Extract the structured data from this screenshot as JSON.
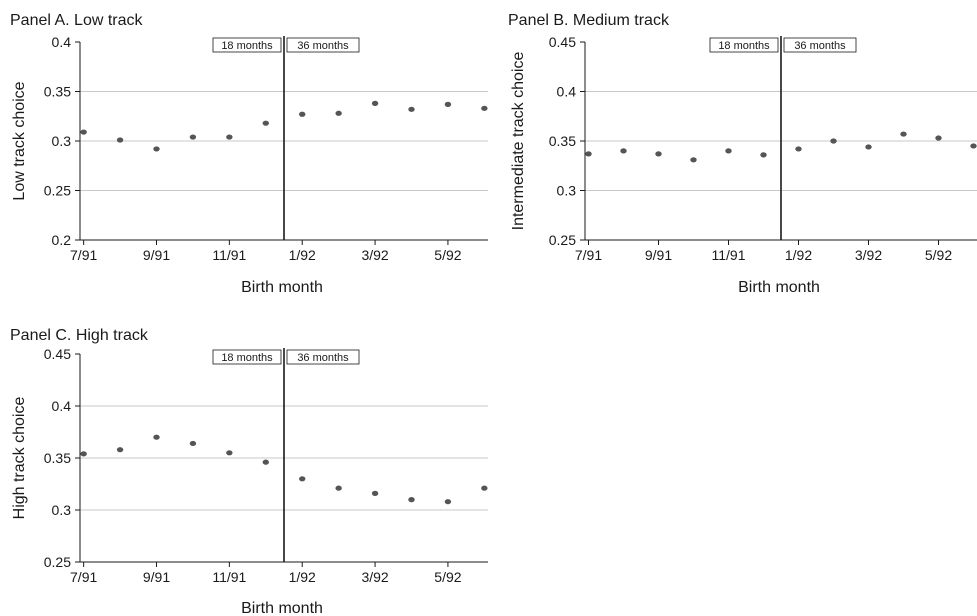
{
  "chart_data": [
    {
      "type": "scatter",
      "title": "Panel A. Low track",
      "ylabel": "Low track choice",
      "xlabel": "Birth month",
      "x": [
        1,
        2,
        3,
        4,
        5,
        6,
        7,
        8,
        9,
        10,
        11,
        12
      ],
      "x_tick_positions": [
        1,
        3,
        5,
        7,
        9,
        11
      ],
      "x_tick_labels": [
        "7/91",
        "9/91",
        "11/91",
        "1/92",
        "3/92",
        "5/92"
      ],
      "xlim": [
        0.9,
        12.1
      ],
      "ylim": [
        0.2,
        0.4
      ],
      "yticks": [
        0.2,
        0.25,
        0.3,
        0.35,
        0.4
      ],
      "ytick_labels": [
        "0.2",
        "0.25",
        "0.3",
        "0.35",
        "0.4"
      ],
      "grid_values": [
        0.25,
        0.3,
        0.35
      ],
      "values": [
        0.309,
        0.301,
        0.292,
        0.304,
        0.304,
        0.318,
        0.327,
        0.328,
        0.338,
        0.332,
        0.337,
        0.333
      ],
      "cutoff_x": 6.5,
      "annotations": [
        "18 months",
        "36 months"
      ],
      "marker_color": "#555555"
    },
    {
      "type": "scatter",
      "title": "Panel B. Medium track",
      "ylabel": "Intermediate track choice",
      "xlabel": "Birth month",
      "x": [
        1,
        2,
        3,
        4,
        5,
        6,
        7,
        8,
        9,
        10,
        11,
        12
      ],
      "x_tick_positions": [
        1,
        3,
        5,
        7,
        9,
        11
      ],
      "x_tick_labels": [
        "7/91",
        "9/91",
        "11/91",
        "1/92",
        "3/92",
        "5/92"
      ],
      "xlim": [
        0.9,
        12.1
      ],
      "ylim": [
        0.25,
        0.45
      ],
      "yticks": [
        0.25,
        0.3,
        0.35,
        0.4,
        0.45
      ],
      "ytick_labels": [
        "0.25",
        "0.3",
        "0.35",
        "0.4",
        "0.45"
      ],
      "grid_values": [
        0.3,
        0.35,
        0.4
      ],
      "values": [
        0.337,
        0.34,
        0.337,
        0.331,
        0.34,
        0.336,
        0.342,
        0.35,
        0.344,
        0.357,
        0.353,
        0.345
      ],
      "cutoff_x": 6.5,
      "annotations": [
        "18 months",
        "36 months"
      ],
      "marker_color": "#555555"
    },
    {
      "type": "scatter",
      "title": "Panel C. High track",
      "ylabel": "High track choice",
      "xlabel": "Birth month",
      "x": [
        1,
        2,
        3,
        4,
        5,
        6,
        7,
        8,
        9,
        10,
        11,
        12
      ],
      "x_tick_positions": [
        1,
        3,
        5,
        7,
        9,
        11
      ],
      "x_tick_labels": [
        "7/91",
        "9/91",
        "11/91",
        "1/92",
        "3/92",
        "5/92"
      ],
      "xlim": [
        0.9,
        12.1
      ],
      "ylim": [
        0.25,
        0.45
      ],
      "yticks": [
        0.25,
        0.3,
        0.35,
        0.4,
        0.45
      ],
      "ytick_labels": [
        "0.25",
        "0.3",
        "0.35",
        "0.4",
        "0.45"
      ],
      "grid_values": [
        0.3,
        0.35,
        0.4
      ],
      "values": [
        0.354,
        0.358,
        0.37,
        0.364,
        0.355,
        0.346,
        0.33,
        0.321,
        0.316,
        0.31,
        0.308,
        0.321
      ],
      "cutoff_x": 6.5,
      "annotations": [
        "18 months",
        "36 months"
      ],
      "marker_color": "#555555"
    }
  ]
}
